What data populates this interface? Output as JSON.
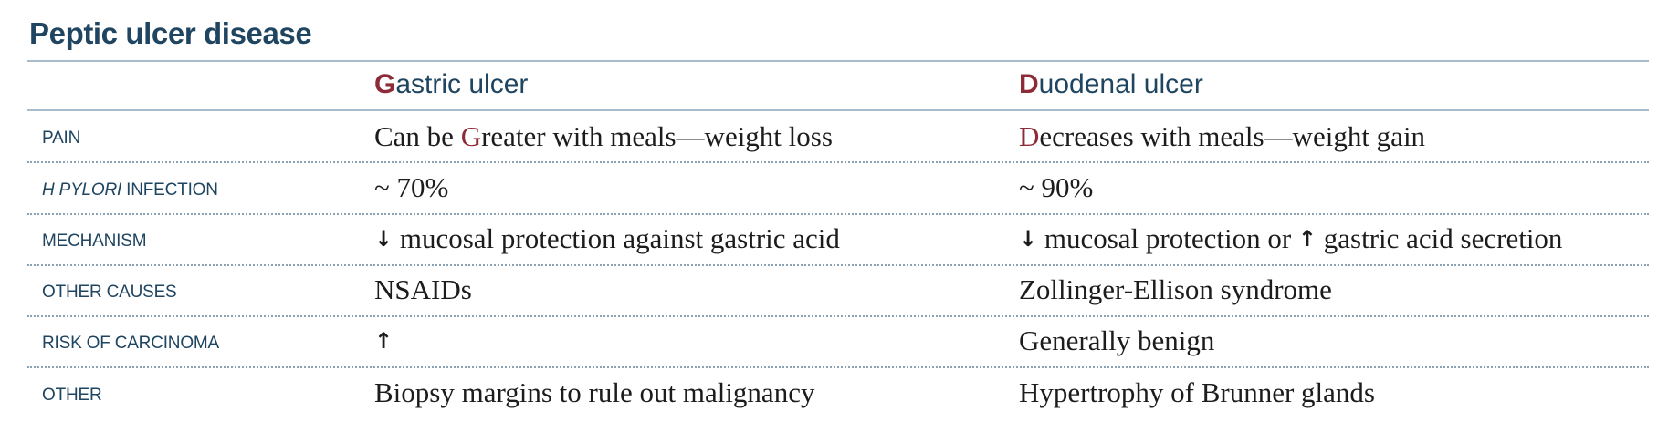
{
  "table": {
    "title": "Peptic ulcer disease",
    "columns": [
      {
        "accent_letter": "G",
        "rest": "astric ulcer"
      },
      {
        "accent_letter": "D",
        "rest": "uodenal ulcer"
      }
    ],
    "rows": [
      {
        "label": "PAIN",
        "gastric": {
          "prefix": "Can be ",
          "accent_letter": "G",
          "rest": "reater with meals—weight loss"
        },
        "duodenal": {
          "accent_letter": "D",
          "rest": "ecreases with meals—weight gain"
        }
      },
      {
        "label_italic": "H PYLORI",
        "label_rest": " INFECTION",
        "gastric": "~ 70%",
        "duodenal": "~ 90%"
      },
      {
        "label": "MECHANISM",
        "gastric": {
          "arrow1": "↓",
          "text1": " mucosal protection against gastric acid"
        },
        "duodenal": {
          "arrow1": "↓",
          "text1": " mucosal protection or ",
          "arrow2": "↑",
          "text2": " gastric acid secretion"
        }
      },
      {
        "label": "OTHER CAUSES",
        "gastric": "NSAIDs",
        "duodenal": "Zollinger-Ellison syndrome"
      },
      {
        "label": "RISK OF CARCINOMA",
        "gastric": "↑",
        "duodenal": "Generally benign"
      },
      {
        "label": "OTHER",
        "gastric": "Biopsy margins to rule out malignancy",
        "duodenal": "Hypertrophy of Brunner glands"
      }
    ]
  }
}
